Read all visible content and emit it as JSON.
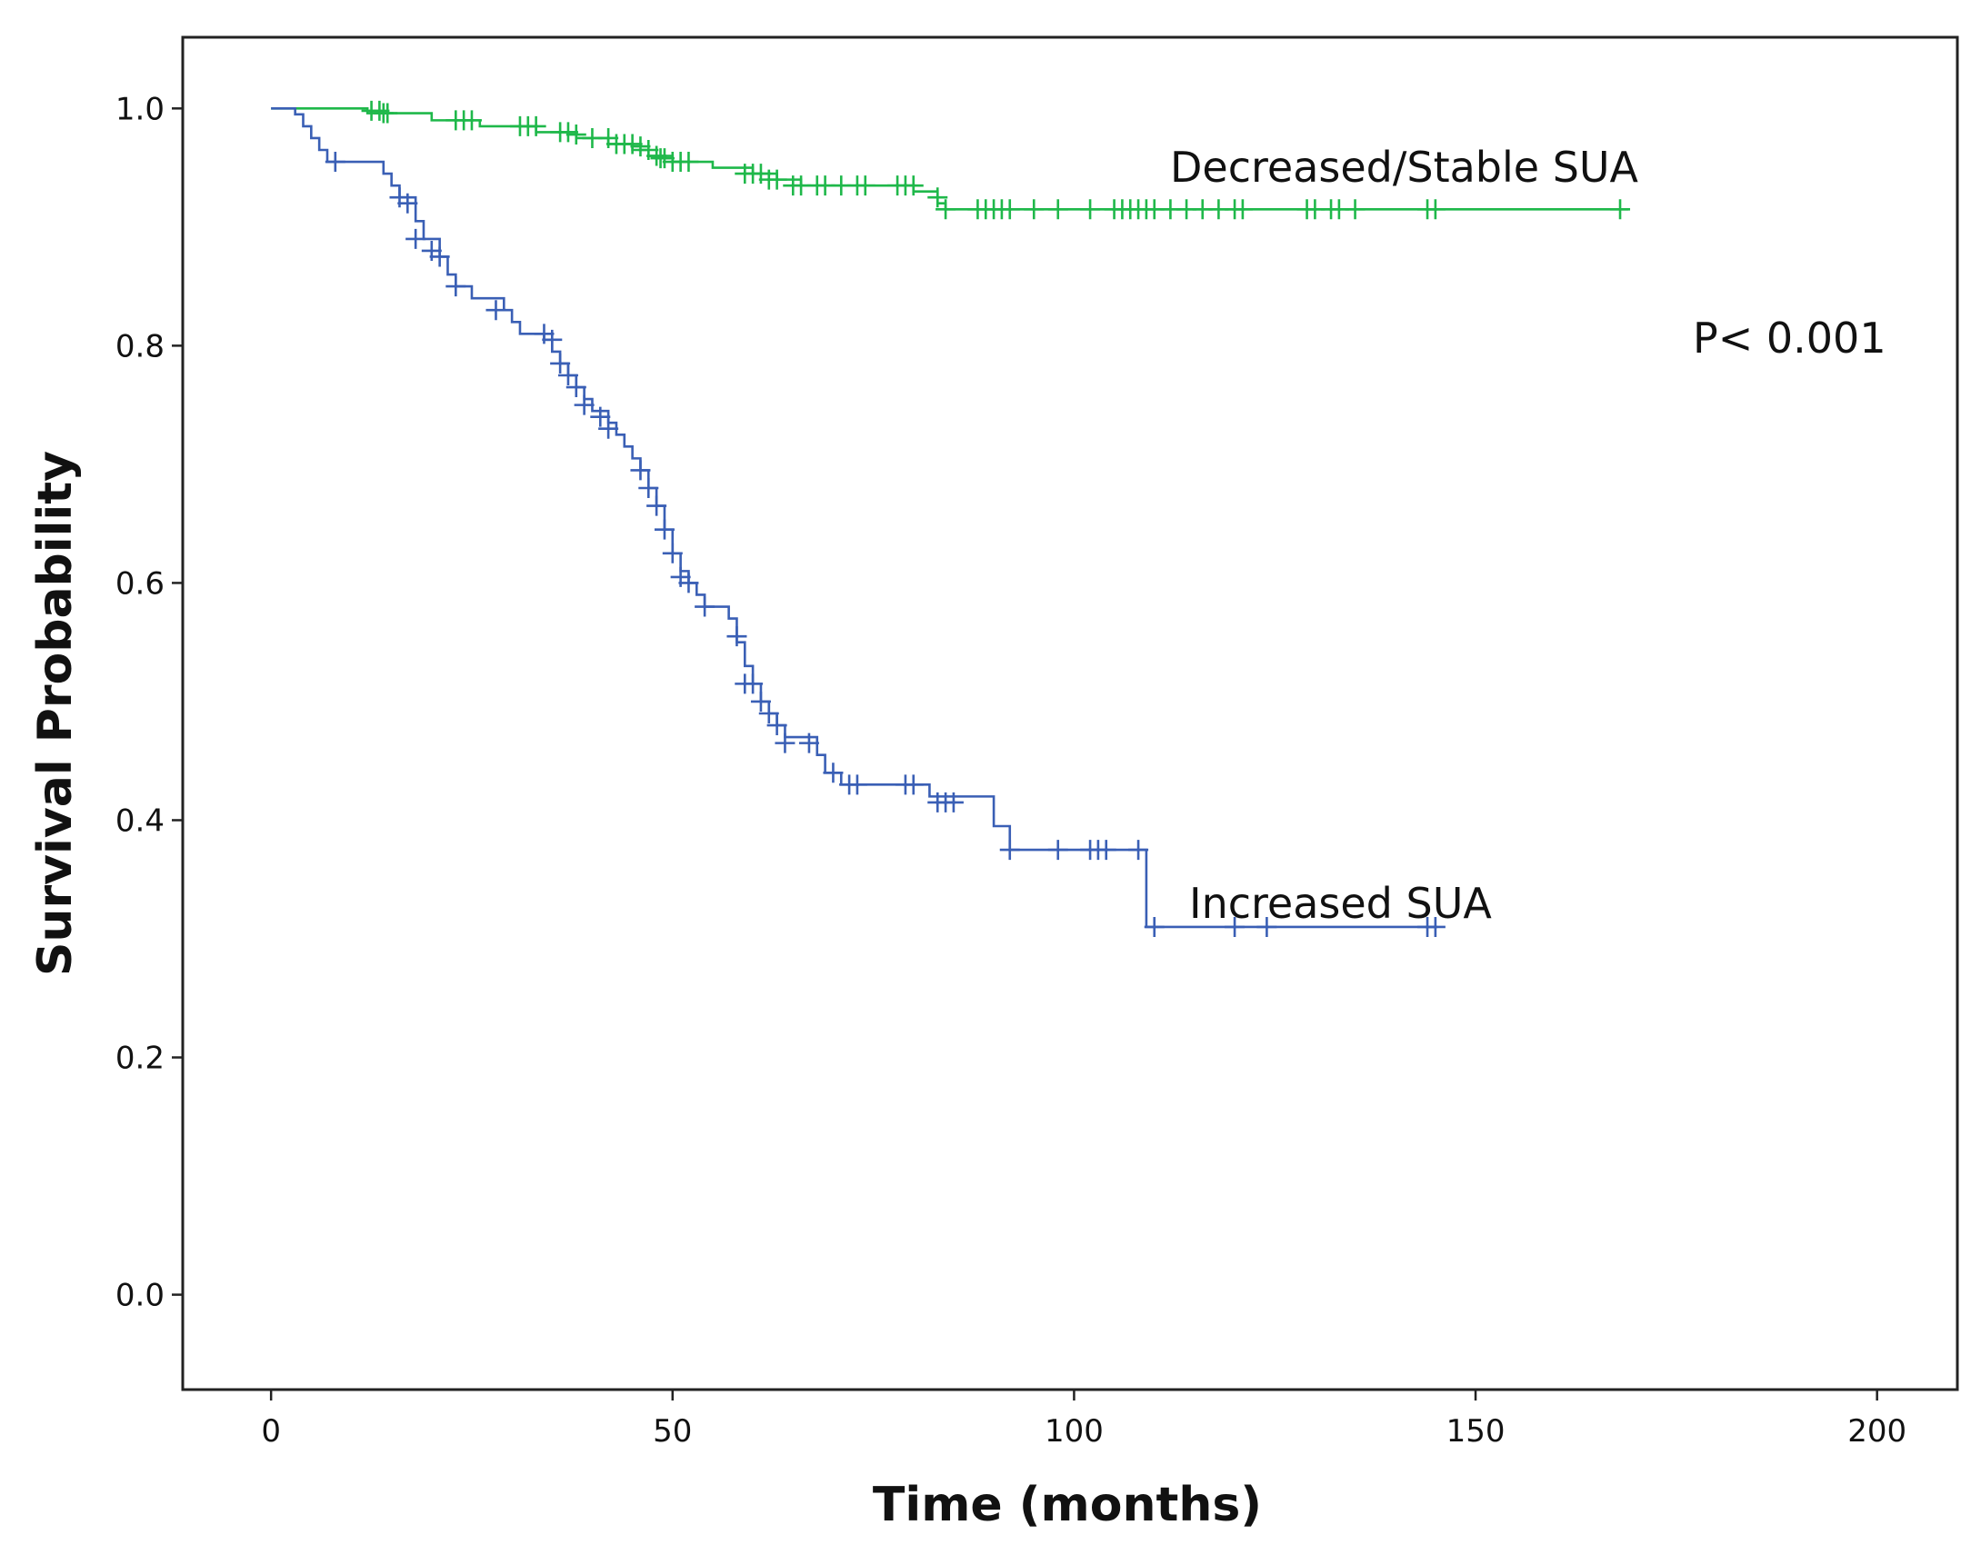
{
  "chart_data": {
    "type": "line",
    "subtype": "kaplan-meier",
    "title": "",
    "xlabel": "Time (months)",
    "ylabel": "Survival Probability",
    "xlim": [
      -11,
      210
    ],
    "ylim": [
      -0.08,
      1.06
    ],
    "xticks": [
      0,
      50,
      100,
      150,
      200
    ],
    "xtick_labels": [
      "0",
      "50",
      "100",
      "150",
      "200"
    ],
    "yticks": [
      0.0,
      0.2,
      0.4,
      0.6,
      0.8,
      1.0
    ],
    "ytick_labels": [
      "0.0",
      "0.2",
      "0.4",
      "0.6",
      "0.8",
      "1.0"
    ],
    "grid": false,
    "annotations": [
      {
        "name": "p-value",
        "text": "P< 0.001"
      }
    ],
    "series": [
      {
        "name": "Decreased/Stable SUA",
        "color": "#1fb84a",
        "steps": [
          [
            0,
            1.0
          ],
          [
            12,
            0.996
          ],
          [
            20,
            0.99
          ],
          [
            26,
            0.985
          ],
          [
            33,
            0.98
          ],
          [
            38,
            0.975
          ],
          [
            42,
            0.97
          ],
          [
            45,
            0.965
          ],
          [
            47,
            0.96
          ],
          [
            50,
            0.955
          ],
          [
            55,
            0.95
          ],
          [
            60,
            0.945
          ],
          [
            63,
            0.94
          ],
          [
            66,
            0.935
          ],
          [
            75,
            0.935
          ],
          [
            80,
            0.93
          ],
          [
            83,
            0.92
          ],
          [
            84,
            0.915
          ],
          [
            169,
            0.915
          ]
        ],
        "censored": [
          [
            12.5,
            0.998
          ],
          [
            13.5,
            0.998
          ],
          [
            14,
            0.996
          ],
          [
            14.5,
            0.996
          ],
          [
            23,
            0.99
          ],
          [
            24,
            0.99
          ],
          [
            25,
            0.99
          ],
          [
            31,
            0.985
          ],
          [
            32,
            0.985
          ],
          [
            33,
            0.985
          ],
          [
            36,
            0.98
          ],
          [
            37,
            0.98
          ],
          [
            38,
            0.978
          ],
          [
            40,
            0.975
          ],
          [
            42,
            0.975
          ],
          [
            43,
            0.97
          ],
          [
            44,
            0.97
          ],
          [
            45,
            0.97
          ],
          [
            46,
            0.968
          ],
          [
            47,
            0.965
          ],
          [
            48,
            0.96
          ],
          [
            48.5,
            0.958
          ],
          [
            49,
            0.958
          ],
          [
            50,
            0.955
          ],
          [
            51,
            0.955
          ],
          [
            52,
            0.955
          ],
          [
            59,
            0.945
          ],
          [
            60,
            0.945
          ],
          [
            61,
            0.945
          ],
          [
            62,
            0.94
          ],
          [
            63,
            0.94
          ],
          [
            65,
            0.935
          ],
          [
            66,
            0.935
          ],
          [
            68,
            0.935
          ],
          [
            69,
            0.935
          ],
          [
            71,
            0.935
          ],
          [
            73,
            0.935
          ],
          [
            74,
            0.935
          ],
          [
            78,
            0.935
          ],
          [
            79,
            0.935
          ],
          [
            80,
            0.935
          ],
          [
            83,
            0.925
          ],
          [
            84,
            0.915
          ],
          [
            88,
            0.915
          ],
          [
            89,
            0.915
          ],
          [
            90,
            0.915
          ],
          [
            91,
            0.915
          ],
          [
            92,
            0.915
          ],
          [
            95,
            0.915
          ],
          [
            98,
            0.915
          ],
          [
            102,
            0.915
          ],
          [
            105,
            0.915
          ],
          [
            106,
            0.915
          ],
          [
            107,
            0.915
          ],
          [
            108,
            0.915
          ],
          [
            109,
            0.915
          ],
          [
            110,
            0.915
          ],
          [
            112,
            0.915
          ],
          [
            114,
            0.915
          ],
          [
            116,
            0.915
          ],
          [
            118,
            0.915
          ],
          [
            120,
            0.915
          ],
          [
            121,
            0.915
          ],
          [
            129,
            0.915
          ],
          [
            130,
            0.915
          ],
          [
            132,
            0.915
          ],
          [
            133,
            0.915
          ],
          [
            135,
            0.915
          ],
          [
            144,
            0.915
          ],
          [
            145,
            0.915
          ],
          [
            168,
            0.915
          ]
        ]
      },
      {
        "name": "Increased SUA",
        "color": "#3a5fb5",
        "steps": [
          [
            0,
            1.0
          ],
          [
            3,
            0.995
          ],
          [
            4,
            0.985
          ],
          [
            5,
            0.975
          ],
          [
            6,
            0.965
          ],
          [
            7,
            0.955
          ],
          [
            14,
            0.945
          ],
          [
            15,
            0.935
          ],
          [
            16,
            0.925
          ],
          [
            18,
            0.905
          ],
          [
            19,
            0.89
          ],
          [
            21,
            0.875
          ],
          [
            22,
            0.86
          ],
          [
            23,
            0.85
          ],
          [
            25,
            0.84
          ],
          [
            29,
            0.83
          ],
          [
            30,
            0.82
          ],
          [
            31,
            0.81
          ],
          [
            34,
            0.805
          ],
          [
            35,
            0.795
          ],
          [
            36,
            0.785
          ],
          [
            37,
            0.775
          ],
          [
            38,
            0.765
          ],
          [
            39,
            0.755
          ],
          [
            40,
            0.745
          ],
          [
            42,
            0.735
          ],
          [
            43,
            0.725
          ],
          [
            44,
            0.715
          ],
          [
            45,
            0.705
          ],
          [
            46,
            0.695
          ],
          [
            47,
            0.68
          ],
          [
            48,
            0.665
          ],
          [
            49,
            0.645
          ],
          [
            50,
            0.625
          ],
          [
            51,
            0.61
          ],
          [
            52,
            0.6
          ],
          [
            53,
            0.59
          ],
          [
            54,
            0.58
          ],
          [
            57,
            0.57
          ],
          [
            58,
            0.55
          ],
          [
            59,
            0.53
          ],
          [
            60,
            0.515
          ],
          [
            61,
            0.5
          ],
          [
            62,
            0.49
          ],
          [
            63,
            0.48
          ],
          [
            64,
            0.47
          ],
          [
            68,
            0.455
          ],
          [
            69,
            0.44
          ],
          [
            71,
            0.43
          ],
          [
            82,
            0.42
          ],
          [
            90,
            0.395
          ],
          [
            92,
            0.375
          ],
          [
            109,
            0.31
          ],
          [
            145,
            0.31
          ]
        ],
        "censored": [
          [
            8,
            0.955
          ],
          [
            16,
            0.925
          ],
          [
            17,
            0.92
          ],
          [
            18,
            0.89
          ],
          [
            20,
            0.88
          ],
          [
            21,
            0.875
          ],
          [
            23,
            0.85
          ],
          [
            28,
            0.83
          ],
          [
            34,
            0.81
          ],
          [
            35,
            0.805
          ],
          [
            36,
            0.785
          ],
          [
            37,
            0.775
          ],
          [
            38,
            0.765
          ],
          [
            39,
            0.75
          ],
          [
            41,
            0.74
          ],
          [
            42,
            0.73
          ],
          [
            46,
            0.695
          ],
          [
            47,
            0.68
          ],
          [
            48,
            0.665
          ],
          [
            49,
            0.645
          ],
          [
            50,
            0.625
          ],
          [
            51,
            0.605
          ],
          [
            52,
            0.6
          ],
          [
            54,
            0.58
          ],
          [
            58,
            0.555
          ],
          [
            59,
            0.515
          ],
          [
            60,
            0.515
          ],
          [
            61,
            0.5
          ],
          [
            62,
            0.49
          ],
          [
            63,
            0.48
          ],
          [
            64,
            0.465
          ],
          [
            67,
            0.465
          ],
          [
            70,
            0.44
          ],
          [
            72,
            0.43
          ],
          [
            73,
            0.43
          ],
          [
            79,
            0.43
          ],
          [
            80,
            0.43
          ],
          [
            83,
            0.415
          ],
          [
            84,
            0.415
          ],
          [
            85,
            0.415
          ],
          [
            92,
            0.375
          ],
          [
            98,
            0.375
          ],
          [
            102,
            0.375
          ],
          [
            103,
            0.375
          ],
          [
            104,
            0.375
          ],
          [
            108,
            0.375
          ],
          [
            110,
            0.31
          ],
          [
            120,
            0.31
          ],
          [
            124,
            0.31
          ],
          [
            144,
            0.31
          ],
          [
            145,
            0.31
          ]
        ]
      }
    ]
  }
}
